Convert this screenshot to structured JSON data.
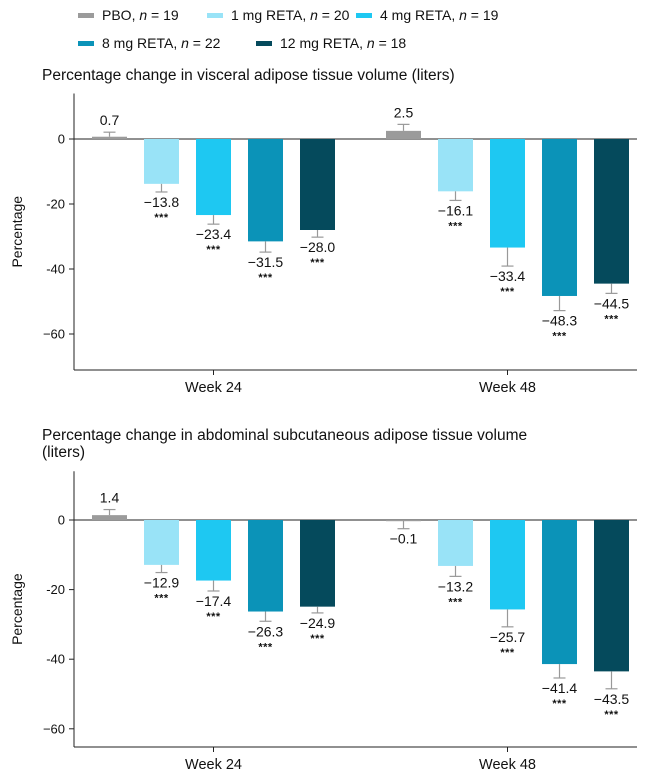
{
  "legend": {
    "items": [
      {
        "key": "pbo",
        "label": "PBO, ",
        "n": "n",
        "count": " = 19",
        "color": "#9b9b9b"
      },
      {
        "key": "r1",
        "label": "1 mg RETA, ",
        "n": "n",
        "count": " = 20",
        "color": "#99e3f7"
      },
      {
        "key": "r4",
        "label": "4 mg RETA, ",
        "n": "n",
        "count": " = 19",
        "color": "#1ec8f2"
      },
      {
        "key": "r8",
        "label": "8 mg RETA, ",
        "n": "n",
        "count": " = 22",
        "color": "#0b93b8"
      },
      {
        "key": "r12",
        "label": "12 mg RETA, ",
        "n": "n",
        "count": " = 18",
        "color": "#054a5c"
      }
    ]
  },
  "chart_data": [
    {
      "type": "bar",
      "title": "Percentage change in visceral adipose tissue volume (liters)",
      "title_lines": [
        "Percentage change in visceral adipose tissue volume (liters)"
      ],
      "ylabel": "Percentage",
      "ylim": [
        -70,
        14
      ],
      "yticks": [
        0,
        -20,
        -40,
        -60
      ],
      "ytick_labels": [
        "0",
        "-20",
        "-40",
        "−60"
      ],
      "categories": [
        "Week 24",
        "Week 48"
      ],
      "series": [
        {
          "name": "PBO",
          "color": "#9b9b9b",
          "values": [
            0.7,
            2.5
          ],
          "err": [
            1.4,
            2.0
          ],
          "labels": [
            "0.7",
            "2.5"
          ],
          "sig": [
            "",
            ""
          ]
        },
        {
          "name": "1 mg RETA",
          "color": "#99e3f7",
          "values": [
            -13.8,
            -16.1
          ],
          "err": [
            2.5,
            2.8
          ],
          "labels": [
            "−13.8",
            "−16.1"
          ],
          "sig": [
            "***",
            "***"
          ]
        },
        {
          "name": "4 mg RETA",
          "color": "#1ec8f2",
          "values": [
            -23.4,
            -33.4
          ],
          "err": [
            2.8,
            5.7
          ],
          "labels": [
            "−23.4",
            "−33.4"
          ],
          "sig": [
            "***",
            "***"
          ]
        },
        {
          "name": "8 mg RETA",
          "color": "#0b93b8",
          "values": [
            -31.5,
            -48.3
          ],
          "err": [
            3.3,
            4.5
          ],
          "labels": [
            "−31.5",
            "−48.3"
          ],
          "sig": [
            "***",
            "***"
          ]
        },
        {
          "name": "12 mg RETA",
          "color": "#054a5c",
          "values": [
            -28.0,
            -44.5
          ],
          "err": [
            2.2,
            3.0
          ],
          "labels": [
            "−28.0",
            "−44.5"
          ],
          "sig": [
            "***",
            "***"
          ]
        }
      ]
    },
    {
      "type": "bar",
      "title": "Percentage change in abdominal subcutaneous adipose tissue volume (liters)",
      "title_lines": [
        "Percentage change in abdominal subcutaneous adipose tissue volume",
        "(liters)"
      ],
      "ylabel": "Percentage",
      "ylim": [
        -65,
        14
      ],
      "yticks": [
        0,
        -20,
        -40,
        -60
      ],
      "ytick_labels": [
        "0",
        "-20",
        "-40",
        "−60"
      ],
      "categories": [
        "Week 24",
        "Week 48"
      ],
      "series": [
        {
          "name": "PBO",
          "color": "#9b9b9b",
          "values": [
            1.4,
            -0.1
          ],
          "err": [
            1.6,
            2.4
          ],
          "labels": [
            "1.4",
            "−0.1"
          ],
          "sig": [
            "",
            ""
          ]
        },
        {
          "name": "1 mg RETA",
          "color": "#99e3f7",
          "values": [
            -12.9,
            -13.2
          ],
          "err": [
            2.2,
            3.0
          ],
          "labels": [
            "−12.9",
            "−13.2"
          ],
          "sig": [
            "***",
            "***"
          ]
        },
        {
          "name": "4 mg RETA",
          "color": "#1ec8f2",
          "values": [
            -17.4,
            -25.7
          ],
          "err": [
            3.0,
            5.0
          ],
          "labels": [
            "−17.4",
            "−25.7"
          ],
          "sig": [
            "***",
            "***"
          ]
        },
        {
          "name": "8 mg RETA",
          "color": "#0b93b8",
          "values": [
            -26.3,
            -41.4
          ],
          "err": [
            2.8,
            4.0
          ],
          "labels": [
            "−26.3",
            "−41.4"
          ],
          "sig": [
            "***",
            "***"
          ]
        },
        {
          "name": "12 mg RETA",
          "color": "#054a5c",
          "values": [
            -24.9,
            -43.5
          ],
          "err": [
            1.8,
            5.0
          ],
          "labels": [
            "−24.9",
            "−43.5"
          ],
          "sig": [
            "***",
            "***"
          ]
        }
      ]
    }
  ]
}
